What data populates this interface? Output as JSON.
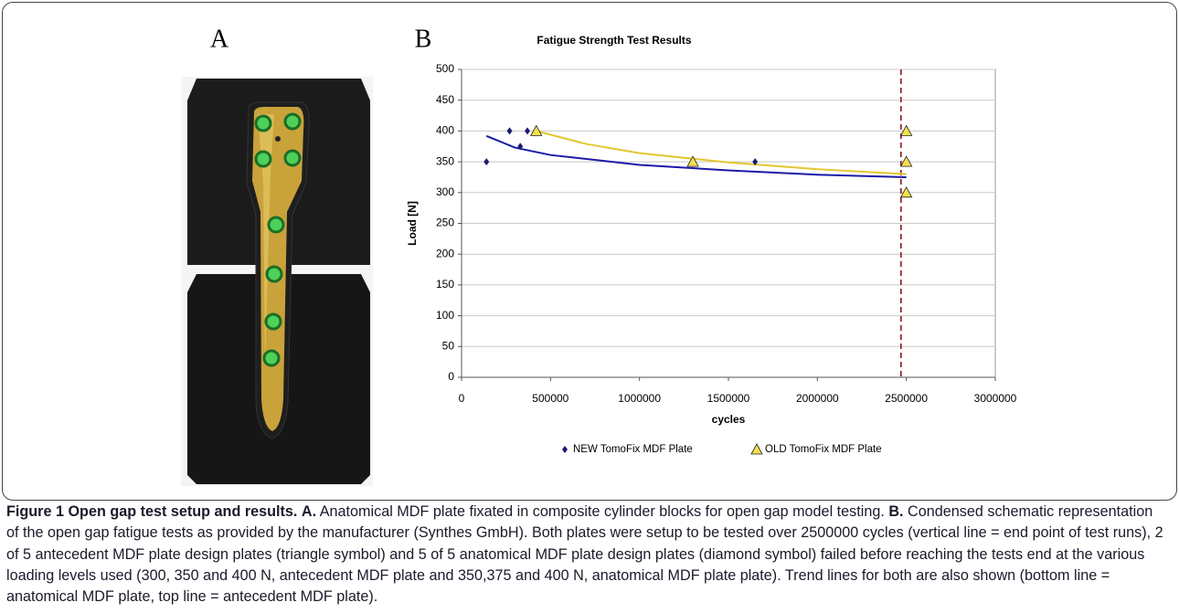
{
  "panels": {
    "a": "A",
    "b": "B"
  },
  "chart_data": {
    "type": "scatter",
    "title": "Fatigue Strength Test Results",
    "xlabel": "cycles",
    "ylabel": "Load [N]",
    "xlim": [
      0,
      3000000
    ],
    "xticks": [
      0,
      500000,
      1000000,
      1500000,
      2000000,
      2500000,
      3000000
    ],
    "ylim": [
      0,
      500
    ],
    "yticks": [
      0,
      50,
      100,
      150,
      200,
      250,
      300,
      350,
      400,
      450,
      500
    ],
    "grid": true,
    "legend": "bottom",
    "series": [
      {
        "name": "NEW TomoFix MDF Plate",
        "color": "#1c1c6e",
        "marker": "diamond",
        "x": [
          140000,
          270000,
          330000,
          370000,
          1650000
        ],
        "values": [
          350,
          400,
          375,
          400,
          350
        ]
      },
      {
        "name": "OLD TomoFix MDF Plate",
        "color": "#f2e04c",
        "marker": "triangle",
        "x": [
          420000,
          1300000,
          2500000,
          2500000,
          2500000
        ],
        "values": [
          400,
          350,
          400,
          350,
          300
        ]
      }
    ],
    "trendlines": [
      {
        "color": "#1a1aa8",
        "x": [
          140000,
          300000,
          500000,
          1000000,
          1500000,
          2000000,
          2500000
        ],
        "values": [
          392,
          373,
          361,
          345,
          336,
          329,
          325
        ]
      },
      {
        "color": "#e3c62e",
        "x": [
          420000,
          700000,
          1000000,
          1500000,
          2000000,
          2500000
        ],
        "values": [
          400,
          379,
          364,
          349,
          338,
          330
        ]
      }
    ],
    "reference_line": {
      "x": 2470000,
      "color": "#8b1a1a",
      "style": "dashed"
    }
  },
  "caption": {
    "figure": "Figure 1 Open gap test setup and results.",
    "a_label": "A.",
    "a_text": "Anatomical MDF plate fixated in composite cylinder blocks for open gap model testing.",
    "b_label": "B.",
    "b_text": "Condensed schematic representation of the open gap fatigue tests as provided by the manufacturer (Synthes GmbH). Both plates were setup to be tested over 2500000 cycles (vertical line = end point of test runs), 2 of 5 antecedent MDF plate design plates (triangle symbol) and 5 of 5 anatomical MDF plate design plates (diamond symbol) failed before reaching the tests end at the various loading levels used (300, 350 and 400 N, antecedent MDF plate and 350,375 and 400 N, anatomical MDF plate plate). Trend lines for both are also shown (bottom line = anatomical MDF plate, top line = antecedent MDF plate)."
  }
}
